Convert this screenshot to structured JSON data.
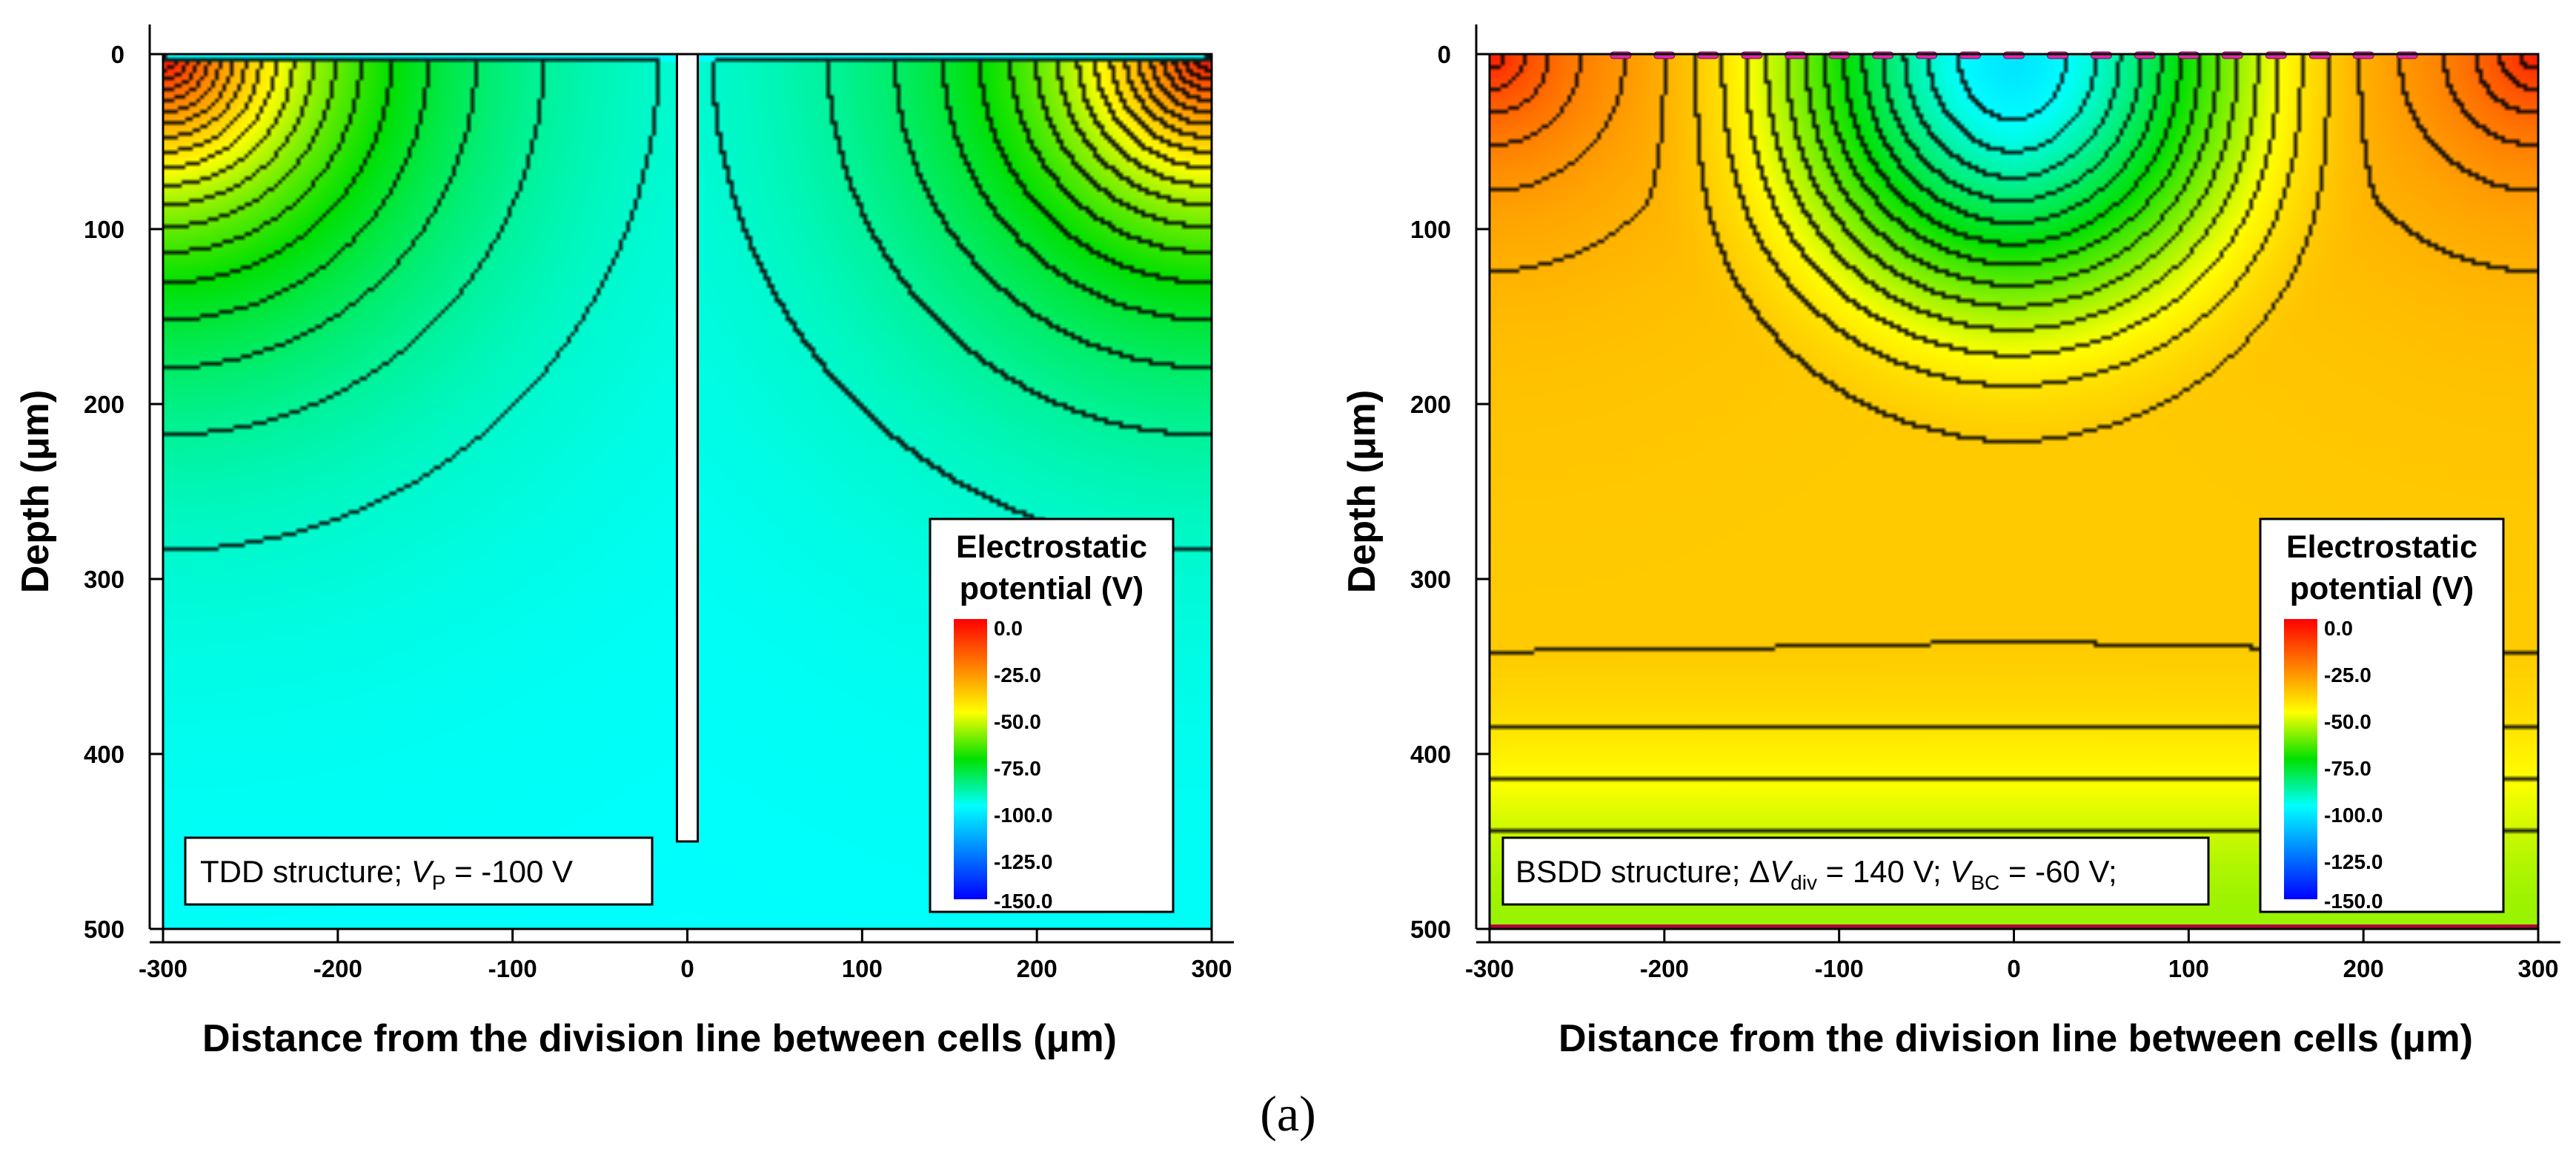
{
  "figure": {
    "caption": "(a)"
  },
  "chart_data": [
    {
      "type": "heatmap",
      "subtype": "contour",
      "structure": "TDD",
      "annotation": {
        "prefix": "TDD structure; ",
        "var": "V",
        "sub": "P",
        "suffix": " = -100 V"
      },
      "xlabel": "Distance from the division line between cells (μm)",
      "ylabel": "Depth (μm)",
      "xlim": [
        -300,
        300
      ],
      "ylim": [
        500,
        0
      ],
      "x_ticks": [
        "-300",
        "-200",
        "-100",
        "0",
        "100",
        "200",
        "300"
      ],
      "y_ticks": [
        "0",
        "100",
        "200",
        "300",
        "400",
        "500"
      ],
      "colorbar": {
        "title": [
          "Electrostatic",
          "potential (V)"
        ],
        "range": [
          -150,
          0
        ],
        "ticks": [
          "0.0",
          "-25.0",
          "-50.0",
          "-75.0",
          "-100.0",
          "-125.0",
          "-150.0"
        ],
        "colors": [
          "#ff0000",
          "#ff7f00",
          "#ffff00",
          "#00e000",
          "#00ffff",
          "#0080ff",
          "#0000ff"
        ]
      },
      "potential_model": {
        "electrodes_at_0V": [
          -300,
          300
        ],
        "surface_potential_V": -100,
        "bulk_potential_V": -100,
        "trench": {
          "x": [
            -3,
            3
          ],
          "depth_um": 450
        }
      }
    },
    {
      "type": "heatmap",
      "subtype": "contour",
      "structure": "BSDD",
      "annotation": {
        "prefix": "BSDD structure; Δ",
        "var": "V",
        "sub": "div",
        "mid": " = 140 V; ",
        "var2": "V",
        "sub2": "BC",
        "suffix": " = -60 V;"
      },
      "xlabel": "Distance from the division line between cells (μm)",
      "ylabel": "Depth (μm)",
      "xlim": [
        -300,
        300
      ],
      "ylim": [
        500,
        0
      ],
      "x_ticks": [
        "-300",
        "-200",
        "-100",
        "0",
        "100",
        "200",
        "300"
      ],
      "y_ticks": [
        "0",
        "100",
        "200",
        "300",
        "400",
        "500"
      ],
      "colorbar": {
        "title": [
          "Electrostatic",
          "potential (V)"
        ],
        "range": [
          -150,
          0
        ],
        "ticks": [
          "0.0",
          "-25.0",
          "-50.0",
          "-75.0",
          "-100.0",
          "-125.0",
          "-150.0"
        ],
        "colors": [
          "#ff0000",
          "#ff7f00",
          "#ffff00",
          "#00e000",
          "#00ffff",
          "#0080ff",
          "#0000ff"
        ]
      },
      "potential_model": {
        "edge_potential_V": -5,
        "center_min_potential_V": -110,
        "plateau_potential_V": -40,
        "back_contact_potential_V": -60,
        "surface_strips_x": [
          -225,
          -200,
          -175,
          -150,
          -125,
          -100,
          -75,
          -50,
          -25,
          0,
          25,
          50,
          75,
          100,
          125,
          150,
          175,
          200,
          225
        ],
        "strip_color": "#dd2aa8"
      }
    }
  ]
}
